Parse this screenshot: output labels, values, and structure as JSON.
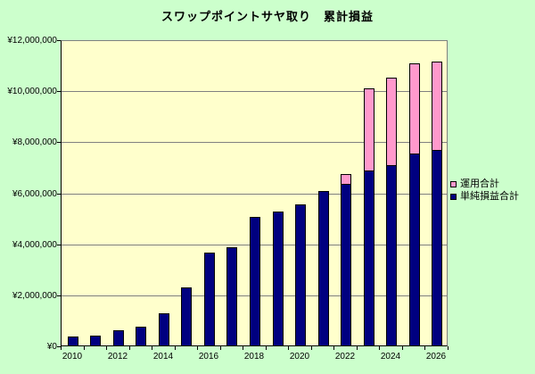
{
  "chart_data": {
    "type": "bar",
    "stacked": true,
    "title": "スワップポイントサヤ取り　累計損益",
    "categories": [
      2010,
      2011,
      2012,
      2013,
      2014,
      2015,
      2016,
      2017,
      2018,
      2019,
      2020,
      2021,
      2022,
      2023,
      2024,
      2025,
      2026
    ],
    "series": [
      {
        "name": "運用合計",
        "color": "#FF99CC",
        "values": [
          0,
          0,
          0,
          0,
          0,
          0,
          0,
          0,
          0,
          0,
          0,
          0,
          390000,
          3220000,
          3440000,
          3530000,
          3480000
        ]
      },
      {
        "name": "単純損益合計",
        "color": "#000080",
        "values": [
          400000,
          430000,
          630000,
          780000,
          1310000,
          2320000,
          3690000,
          3900000,
          5070000,
          5300000,
          5560000,
          6100000,
          6370000,
          6900000,
          7110000,
          7540000,
          7690000
        ]
      }
    ],
    "ylim": [
      0,
      12000000
    ],
    "y_tick_step": 2000000,
    "y_tick_labels": [
      "¥0",
      "¥2,000,000",
      "¥4,000,000",
      "¥6,000,000",
      "¥8,000,000",
      "¥10,000,000",
      "¥12,000,000"
    ],
    "x_tick_labels": [
      "2010",
      "2012",
      "2014",
      "2016",
      "2018",
      "2020",
      "2022",
      "2024",
      "2026"
    ],
    "grid": "horizontal",
    "legend_position": "right",
    "colors": {
      "background": "#CCFFCC",
      "plot_background": "#FFFFCC",
      "gridline": "#808080",
      "axis": "#000000",
      "text": "#000000"
    }
  }
}
